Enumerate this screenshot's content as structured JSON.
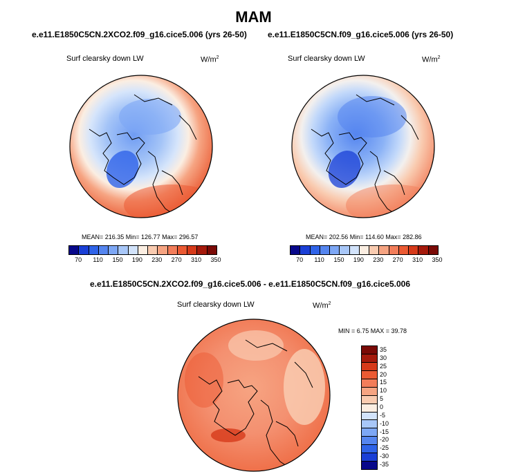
{
  "title": "MAM",
  "panel_left": {
    "heading": "e.e11.E1850C5CN.2XCO2.f09_g16.cice5.006 (yrs 26-50)",
    "variable": "Surf clearsky down LW",
    "units_base": "W/m",
    "units_exp": "2",
    "stats": "MEAN= 216.35   Min= 126.77   Max= 296.57"
  },
  "panel_right": {
    "heading": "e.e11.E1850C5CN.f09_g16.cice5.006 (yrs 26-50)",
    "variable": "Surf clearsky down LW",
    "units_base": "W/m",
    "units_exp": "2",
    "stats": "MEAN= 202.56   Min= 114.60   Max= 282.86"
  },
  "panel_diff": {
    "heading": "e.e11.E1850C5CN.2XCO2.f09_g16.cice5.006 - e.e11.E1850C5CN.f09_g16.cice5.006",
    "variable": "Surf clearsky down LW",
    "units_base": "W/m",
    "units_exp": "2",
    "stats": "MIN =   6.75 MAX =  39.78"
  },
  "colorbar_abs": {
    "colors": [
      "#08088a",
      "#1a3fd6",
      "#2f63e8",
      "#5585ef",
      "#7da7f5",
      "#a8c7f8",
      "#d2e3fb",
      "#fbeee2",
      "#f9cbb0",
      "#f6a482",
      "#f27d5a",
      "#eb5a33",
      "#d63a1a",
      "#a51a0c",
      "#7a0a06"
    ],
    "ticks": [
      "70",
      "110",
      "150",
      "190",
      "230",
      "270",
      "310",
      "350"
    ]
  },
  "colorbar_diff": {
    "colors": [
      "#7a0a06",
      "#a51a0c",
      "#d63a1a",
      "#eb5a33",
      "#f27d5a",
      "#f6a482",
      "#f9cbb0",
      "#fbeee2",
      "#d2e3fb",
      "#a8c7f8",
      "#7da7f5",
      "#5585ef",
      "#2f63e8",
      "#1a3fd6",
      "#08088a"
    ],
    "ticks": [
      "35",
      "30",
      "25",
      "20",
      "15",
      "10",
      "5",
      "0",
      "-5",
      "-10",
      "-15",
      "-20",
      "-25",
      "-30",
      "-35"
    ]
  }
}
